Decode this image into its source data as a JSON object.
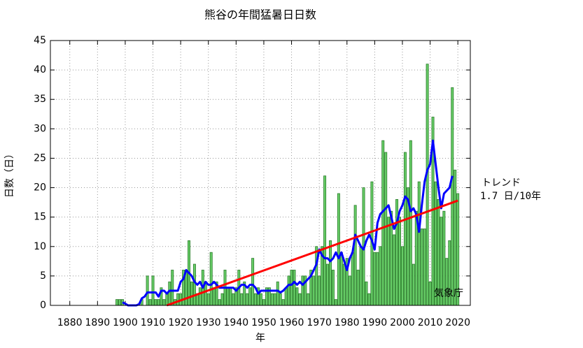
{
  "chart_data": {
    "type": "bar",
    "title": "熊谷の年間猛暑日日数",
    "xlabel": "年",
    "ylabel": "日数（日）",
    "annotations": [
      "トレンド",
      "1.7 日/10年",
      "気象庁"
    ],
    "xlim": [
      1873,
      2024.5
    ],
    "ylim": [
      0,
      45
    ],
    "xticks": [
      1880,
      1890,
      1900,
      1910,
      1920,
      1930,
      1940,
      1950,
      1960,
      1970,
      1980,
      1990,
      2000,
      2010,
      2020
    ],
    "yticks": [
      0,
      5,
      10,
      15,
      20,
      25,
      30,
      35,
      40,
      45
    ],
    "grid": true,
    "x": [
      1897,
      1898,
      1899,
      1900,
      1901,
      1902,
      1903,
      1904,
      1905,
      1906,
      1907,
      1908,
      1909,
      1910,
      1911,
      1912,
      1913,
      1914,
      1915,
      1916,
      1917,
      1918,
      1919,
      1920,
      1921,
      1922,
      1923,
      1924,
      1925,
      1926,
      1927,
      1928,
      1929,
      1930,
      1931,
      1932,
      1933,
      1934,
      1935,
      1936,
      1937,
      1938,
      1939,
      1940,
      1941,
      1942,
      1943,
      1944,
      1945,
      1946,
      1947,
      1948,
      1949,
      1950,
      1951,
      1952,
      1953,
      1954,
      1955,
      1956,
      1957,
      1958,
      1959,
      1960,
      1961,
      1962,
      1963,
      1964,
      1965,
      1966,
      1967,
      1968,
      1969,
      1970,
      1971,
      1972,
      1973,
      1974,
      1975,
      1976,
      1977,
      1978,
      1979,
      1980,
      1981,
      1982,
      1983,
      1984,
      1985,
      1986,
      1987,
      1988,
      1989,
      1990,
      1991,
      1992,
      1993,
      1994,
      1995,
      1996,
      1997,
      1998,
      1999,
      2000,
      2001,
      2002,
      2003,
      2004,
      2005,
      2006,
      2007,
      2008,
      2009,
      2010,
      2011,
      2012,
      2013,
      2014,
      2015,
      2016,
      2017,
      2018,
      2019,
      2020
    ],
    "series": [
      {
        "type": "bar",
        "color": "#66cc66",
        "values": [
          1,
          1,
          1,
          0,
          0,
          0,
          0,
          0,
          0,
          1,
          0,
          5,
          1,
          5,
          1,
          1,
          3,
          1,
          2,
          4,
          6,
          1,
          2,
          2,
          6,
          6,
          11,
          4,
          7,
          2,
          3,
          6,
          4,
          2,
          9,
          3,
          4,
          1,
          2,
          6,
          3,
          3,
          2,
          3,
          6,
          2,
          4,
          2,
          3,
          8,
          2,
          3,
          2,
          1,
          3,
          3,
          2,
          2,
          4,
          2,
          1,
          3,
          5,
          6,
          6,
          3,
          2,
          5,
          5,
          2,
          6,
          5,
          10,
          5,
          10,
          22,
          7,
          11,
          6,
          1,
          19,
          9,
          7,
          8,
          5,
          9,
          17,
          6,
          10,
          20,
          4,
          2,
          21,
          9,
          9,
          10,
          28,
          26,
          15,
          16,
          12,
          18,
          15,
          10,
          26,
          20,
          28,
          7,
          16,
          21,
          13,
          13,
          41,
          4,
          32,
          21,
          18,
          15,
          16,
          8,
          11,
          37,
          23,
          19
        ]
      },
      {
        "type": "line",
        "color": "#0000ff",
        "values": [
          null,
          null,
          0.5,
          0.3,
          0,
          0,
          0,
          0,
          0.2,
          1.2,
          1.5,
          2.2,
          2.2,
          2.2,
          2.2,
          1.5,
          2.5,
          2.5,
          2,
          2.5,
          2.5,
          2.5,
          2.5,
          4,
          4.5,
          6,
          5.5,
          5,
          4,
          3.5,
          4,
          3,
          4,
          3.5,
          3.5,
          4,
          3.5,
          3,
          3,
          3,
          3,
          3,
          3,
          2.5,
          3,
          3.5,
          3.5,
          3,
          3.5,
          3.5,
          3,
          2,
          2.5,
          2.5,
          2.5,
          2.5,
          2.5,
          2.5,
          2.5,
          2.2,
          2.5,
          3,
          3.5,
          3.5,
          4,
          3.5,
          4,
          3.5,
          4,
          4.5,
          5,
          6,
          7,
          9.5,
          8.5,
          8,
          8,
          7.5,
          8,
          9,
          8,
          9,
          7.5,
          6,
          8,
          9,
          12,
          11,
          10,
          9.5,
          11,
          12,
          11,
          9.5,
          14,
          15.5,
          16,
          16.5,
          17,
          15,
          13,
          14,
          16,
          17,
          18.5,
          18,
          16,
          16.5,
          15.5,
          12.5,
          17,
          21,
          23,
          24,
          28,
          24,
          20,
          16.5,
          19,
          19.5,
          20,
          22,
          null,
          null
        ]
      }
    ],
    "trend": {
      "color": "#ff0000",
      "x": [
        1915,
        2020
      ],
      "values": [
        0,
        17.8
      ]
    }
  }
}
